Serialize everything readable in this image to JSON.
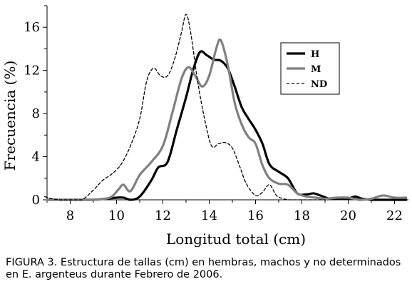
{
  "caption": "FIGURA 3. Estructura de tallas (cm) en hembras, machos y no determinados en E. argenteus durante Febrero de 2006.",
  "chart_data": {
    "type": "line",
    "title": "",
    "xlabel": "Longitud total (cm)",
    "ylabel": "Frecuencia (%)",
    "xlim": [
      7,
      22.6
    ],
    "ylim": [
      0,
      18
    ],
    "x_ticks": [
      8,
      10,
      12,
      14,
      16,
      18,
      20,
      22
    ],
    "y_ticks": [
      0,
      4,
      8,
      12,
      16
    ],
    "x_tick_labels": [
      "8",
      "10",
      "12",
      "14",
      "16",
      "18",
      "20",
      "22"
    ],
    "y_tick_labels": [
      "0",
      "4",
      "8",
      "12",
      "16"
    ],
    "grid": false,
    "legend_position": "top-right",
    "series": [
      {
        "name": "H",
        "color": "#000000",
        "style": "solid-thick",
        "x": [
          7,
          8,
          9,
          9.5,
          10,
          10.3,
          10.6,
          11,
          11.5,
          11.8,
          12.2,
          12.6,
          13,
          13.3,
          13.6,
          13.9,
          14.2,
          14.5,
          14.8,
          15.1,
          15.4,
          15.7,
          16,
          16.3,
          16.6,
          17,
          17.4,
          17.8,
          18.2,
          18.5,
          18.8,
          19.2,
          19.6,
          20,
          20.3,
          20.6,
          21,
          21.5,
          22,
          22.5
        ],
        "values": [
          0,
          0,
          0,
          0.1,
          0.2,
          0.2,
          0,
          0.3,
          1.8,
          3.0,
          3.5,
          6.5,
          9.5,
          12.0,
          13.7,
          13.4,
          13.0,
          12.9,
          12.2,
          10.5,
          8.6,
          7.5,
          6.5,
          5.2,
          3.3,
          2.6,
          2.0,
          0.6,
          0.5,
          0.6,
          0.4,
          0.1,
          0.1,
          0.1,
          0.3,
          0.1,
          0,
          0,
          0,
          0
        ]
      },
      {
        "name": "M",
        "color": "#808080",
        "style": "solid-thick",
        "x": [
          7,
          8,
          9,
          9.5,
          9.8,
          10.1,
          10.3,
          10.6,
          11,
          11.5,
          12,
          12.4,
          12.8,
          13.1,
          13.4,
          13.7,
          14,
          14.3,
          14.5,
          14.8,
          15.1,
          15.4,
          15.7,
          16,
          16.3,
          16.6,
          17,
          17.4,
          17.8,
          18.2,
          18.6,
          19,
          19.5,
          20,
          20.5,
          21,
          21.5,
          22,
          22.5
        ],
        "values": [
          0,
          0,
          0,
          0.1,
          0.3,
          1.0,
          1.4,
          0.8,
          2.3,
          3.5,
          5.0,
          8.0,
          11.2,
          12.3,
          11.5,
          10.5,
          11.5,
          14.0,
          14.8,
          12.5,
          9.0,
          7.0,
          5.8,
          5.2,
          3.2,
          2.0,
          1.5,
          1.4,
          0.6,
          0.3,
          0.2,
          0.1,
          0.2,
          0.2,
          0,
          0.1,
          0.4,
          0.2,
          0.2
        ]
      },
      {
        "name": "ND",
        "color": "#000000",
        "style": "dashed",
        "x": [
          6.9,
          7.2,
          7.6,
          8,
          8.5,
          9,
          9.4,
          9.8,
          10.2,
          10.6,
          11,
          11.3,
          11.6,
          11.9,
          12.2,
          12.5,
          12.8,
          13,
          13.2,
          13.5,
          13.8,
          14.1,
          14.4,
          14.7,
          15,
          15.3,
          15.6,
          16,
          16.3,
          16.6,
          16.9,
          17.2,
          17.5,
          18,
          18.5,
          19
        ],
        "values": [
          0.3,
          0.1,
          0,
          0,
          0,
          0.9,
          1.8,
          2.4,
          3.3,
          5.0,
          7.5,
          11.0,
          12.2,
          11.5,
          11.5,
          13.0,
          15.5,
          17.2,
          15.5,
          11.0,
          7.5,
          5.0,
          5.2,
          5.3,
          4.8,
          3.2,
          1.5,
          0.4,
          0.7,
          1.4,
          0.4,
          0.1,
          0,
          0,
          0,
          0
        ]
      }
    ]
  }
}
